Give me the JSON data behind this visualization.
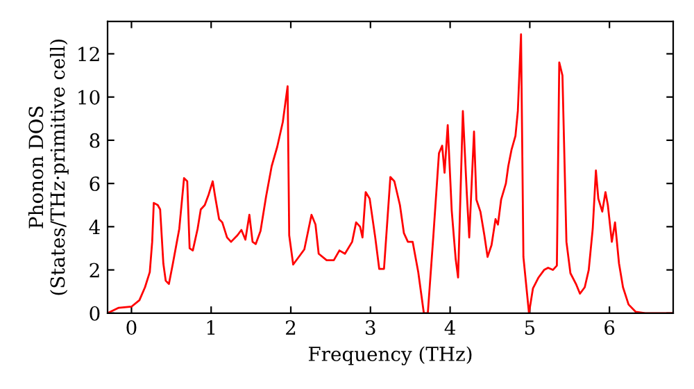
{
  "chart_data": {
    "type": "line",
    "xlabel": "Frequency (THz)",
    "ylabel": "Phonon DOS\n(States/THz·primitive cell)",
    "xlim": [
      -0.3,
      6.8
    ],
    "ylim": [
      0,
      13.5
    ],
    "xticks": [
      0,
      1,
      2,
      3,
      4,
      5,
      6
    ],
    "yticks": [
      0,
      2,
      4,
      6,
      8,
      10,
      12
    ],
    "grid": false,
    "series": [
      {
        "color": "#ff0000",
        "x": [
          -0.3,
          -0.16,
          0,
          0.1,
          0.17,
          0.23,
          0.26,
          0.28,
          0.33,
          0.36,
          0.4,
          0.43,
          0.47,
          0.52,
          0.6,
          0.66,
          0.7,
          0.73,
          0.77,
          0.83,
          0.87,
          0.92,
          0.97,
          1.02,
          1.05,
          1.1,
          1.14,
          1.2,
          1.25,
          1.33,
          1.38,
          1.43,
          1.48,
          1.52,
          1.56,
          1.62,
          1.69,
          1.76,
          1.83,
          1.9,
          1.96,
          1.98,
          2.03,
          2.09,
          2.17,
          2.26,
          2.31,
          2.35,
          2.45,
          2.54,
          2.61,
          2.68,
          2.77,
          2.82,
          2.87,
          2.9,
          2.94,
          2.99,
          3.06,
          3.11,
          3.17,
          3.25,
          3.3,
          3.37,
          3.42,
          3.47,
          3.53,
          3.6,
          3.67,
          3.72,
          3.79,
          3.86,
          3.9,
          3.93,
          3.97,
          4.02,
          4.07,
          4.1,
          4.16,
          4.21,
          4.24,
          4.3,
          4.33,
          4.38,
          4.43,
          4.47,
          4.52,
          4.57,
          4.6,
          4.64,
          4.7,
          4.73,
          4.77,
          4.82,
          4.85,
          4.89,
          4.92,
          4.99,
          5.04,
          5.11,
          5.18,
          5.23,
          5.29,
          5.34,
          5.37,
          5.41,
          5.46,
          5.51,
          5.58,
          5.63,
          5.69,
          5.74,
          5.79,
          5.83,
          5.86,
          5.91,
          5.95,
          5.98,
          6.03,
          6.07,
          6.12,
          6.17,
          6.24,
          6.33,
          6.45,
          6.8
        ],
        "values": [
          0,
          0.25,
          0.3,
          0.6,
          1.2,
          1.9,
          3.3,
          5.1,
          5.0,
          4.8,
          2.3,
          1.5,
          1.35,
          2.3,
          3.9,
          6.25,
          6.1,
          3.0,
          2.9,
          3.9,
          4.8,
          5.0,
          5.5,
          6.1,
          5.4,
          4.35,
          4.2,
          3.5,
          3.3,
          3.6,
          3.85,
          3.4,
          4.55,
          3.3,
          3.2,
          3.8,
          5.4,
          6.8,
          7.7,
          8.85,
          10.5,
          3.6,
          2.25,
          2.55,
          2.95,
          4.55,
          4.1,
          2.75,
          2.45,
          2.45,
          2.9,
          2.75,
          3.3,
          4.2,
          4.0,
          3.5,
          5.6,
          5.3,
          3.5,
          2.05,
          2.05,
          6.3,
          6.1,
          5.0,
          3.7,
          3.3,
          3.3,
          1.9,
          0,
          0,
          3.6,
          7.4,
          7.75,
          6.5,
          8.7,
          4.75,
          2.5,
          1.65,
          9.35,
          5.5,
          3.5,
          8.4,
          5.25,
          4.7,
          3.6,
          2.6,
          3.15,
          4.35,
          4.1,
          5.25,
          6.0,
          6.8,
          7.55,
          8.2,
          9.35,
          12.9,
          2.6,
          0,
          1.15,
          1.65,
          2.0,
          2.1,
          2.0,
          2.2,
          11.6,
          11.0,
          3.3,
          1.85,
          1.35,
          0.9,
          1.2,
          2.0,
          3.9,
          6.6,
          5.3,
          4.7,
          5.6,
          5.0,
          3.3,
          4.2,
          2.3,
          1.2,
          0.4,
          0.06,
          0,
          0
        ]
      }
    ]
  }
}
